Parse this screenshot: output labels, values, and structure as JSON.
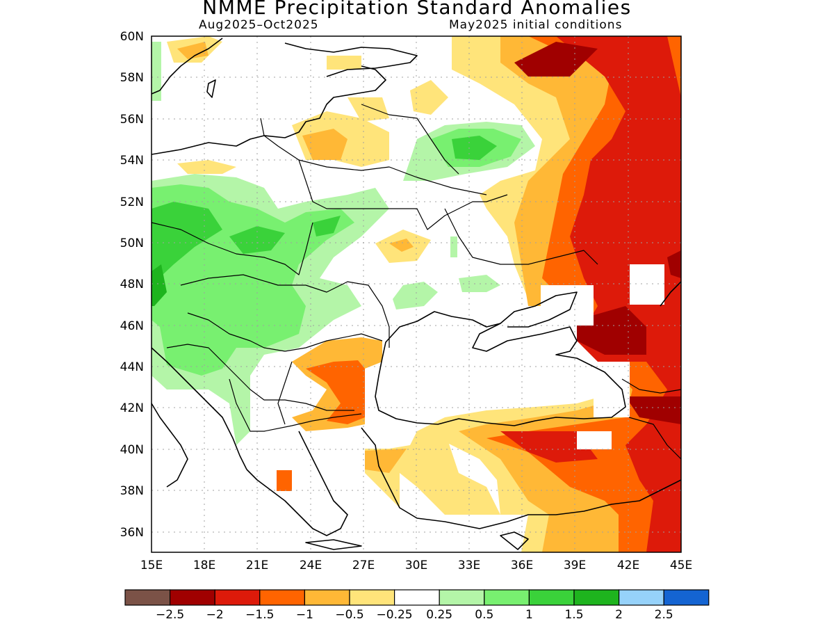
{
  "title": "NMME Precipitation Standard Anomalies",
  "period": "Aug2025–Oct2025",
  "initial_conditions": "May2025 initial conditions",
  "map": {
    "lat_labels": [
      "60N",
      "58N",
      "56N",
      "54N",
      "52N",
      "50N",
      "48N",
      "46N",
      "44N",
      "42N",
      "40N",
      "38N",
      "36N"
    ],
    "lon_labels": [
      "15E",
      "18E",
      "21E",
      "24E",
      "27E",
      "30E",
      "33E",
      "36E",
      "39E",
      "42E",
      "45E"
    ],
    "coast_color": "#000000"
  },
  "colorbar": {
    "colors": [
      "#7b5247",
      "#a00000",
      "#dd1a0a",
      "#ff6400",
      "#ffb836",
      "#ffe47a",
      "#ffffff",
      "#b4f5a8",
      "#78f070",
      "#3ad23a",
      "#1eb41e",
      "#96d2fa",
      "#1464d2"
    ],
    "labels": [
      "−2.5",
      "−2",
      "−1.5",
      "−1",
      "−0.5",
      "−0.25",
      "0.25",
      "0.5",
      "1",
      "1.5",
      "2",
      "2.5"
    ]
  }
}
